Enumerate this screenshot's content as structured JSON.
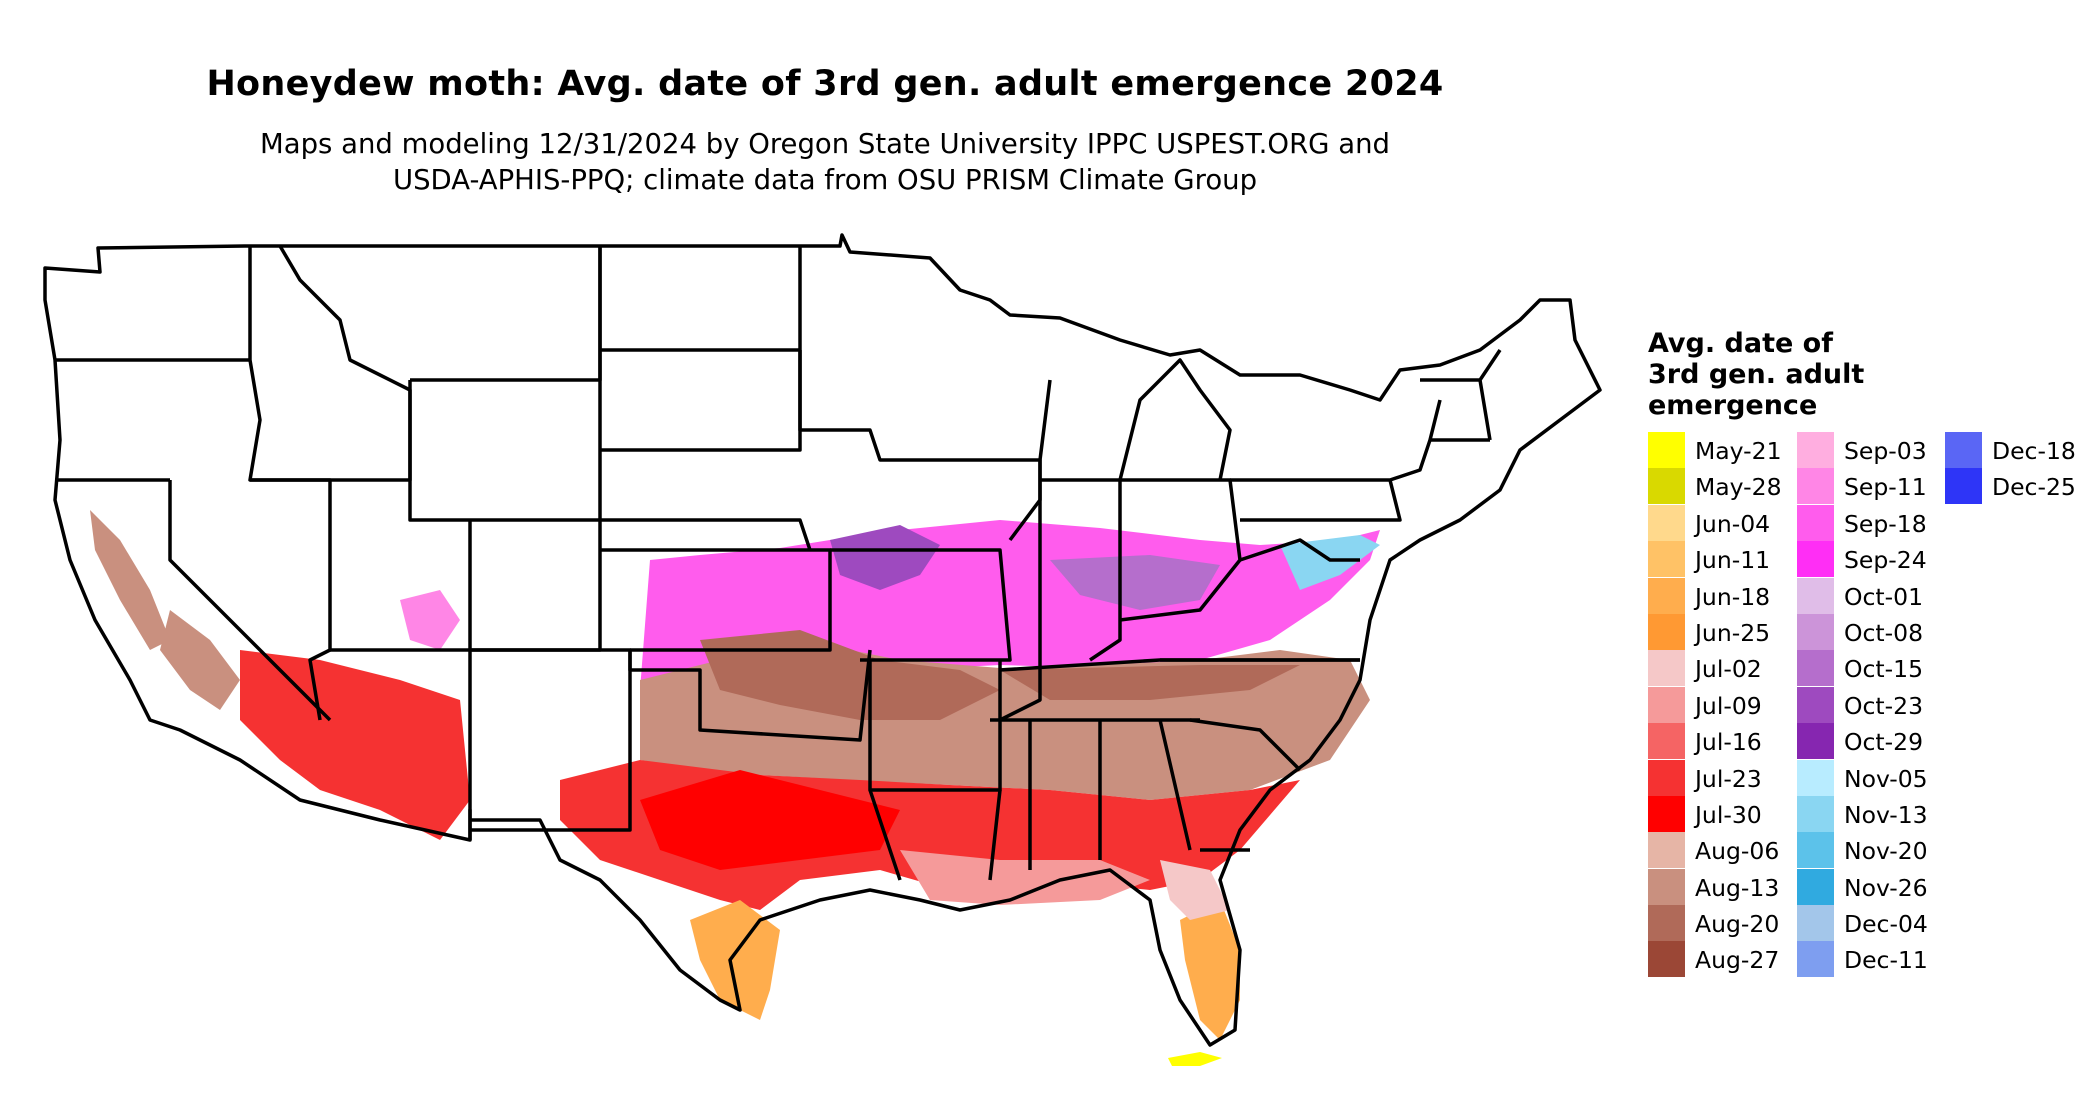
{
  "title": "Honeydew moth: Avg. date of 3rd gen. adult emergence 2024",
  "subtitle_line1": "Maps and modeling 12/31/2024 by Oregon State University IPPC USPEST.ORG and",
  "subtitle_line2": "USDA-APHIS-PPQ; climate data from OSU PRISM Climate Group",
  "legend": {
    "title_line1": "Avg. date of",
    "title_line2": "3rd gen. adult",
    "title_line3": "emergence",
    "columns": [
      [
        {
          "label": "May-21",
          "color": "#ffff00"
        },
        {
          "label": "May-28",
          "color": "#d9d900"
        },
        {
          "label": "Jun-04",
          "color": "#ffd98c"
        },
        {
          "label": "Jun-11",
          "color": "#ffc266"
        },
        {
          "label": "Jun-18",
          "color": "#ffad4d"
        },
        {
          "label": "Jun-25",
          "color": "#ff9933"
        },
        {
          "label": "Jul-02",
          "color": "#f5c8c8"
        },
        {
          "label": "Jul-09",
          "color": "#f59a9a"
        },
        {
          "label": "Jul-16",
          "color": "#f56464"
        },
        {
          "label": "Jul-23",
          "color": "#f53232"
        },
        {
          "label": "Jul-30",
          "color": "#ff0000"
        },
        {
          "label": "Aug-06",
          "color": "#e6b5a6"
        },
        {
          "label": "Aug-13",
          "color": "#c9907f"
        },
        {
          "label": "Aug-20",
          "color": "#b06a59"
        },
        {
          "label": "Aug-27",
          "color": "#9b4736"
        }
      ],
      [
        {
          "label": "Sep-03",
          "color": "#ffaee0"
        },
        {
          "label": "Sep-11",
          "color": "#ff86e6"
        },
        {
          "label": "Sep-18",
          "color": "#ff5ced"
        },
        {
          "label": "Sep-24",
          "color": "#ff2ef5"
        },
        {
          "label": "Oct-01",
          "color": "#e0bde8"
        },
        {
          "label": "Oct-08",
          "color": "#cc94d9"
        },
        {
          "label": "Oct-15",
          "color": "#b56ecc"
        },
        {
          "label": "Oct-23",
          "color": "#9e4abf"
        },
        {
          "label": "Oct-29",
          "color": "#8626b0"
        },
        {
          "label": "Nov-05",
          "color": "#b8ecff"
        },
        {
          "label": "Nov-13",
          "color": "#8ad6f2"
        },
        {
          "label": "Nov-20",
          "color": "#5cc2ea"
        },
        {
          "label": "Nov-26",
          "color": "#30aae0"
        },
        {
          "label": "Dec-04",
          "color": "#a3c6ea"
        },
        {
          "label": "Dec-11",
          "color": "#7e9ef0"
        }
      ],
      [
        {
          "label": "Dec-18",
          "color": "#5a66f5"
        },
        {
          "label": "Dec-25",
          "color": "#2e35f7"
        }
      ]
    ]
  }
}
